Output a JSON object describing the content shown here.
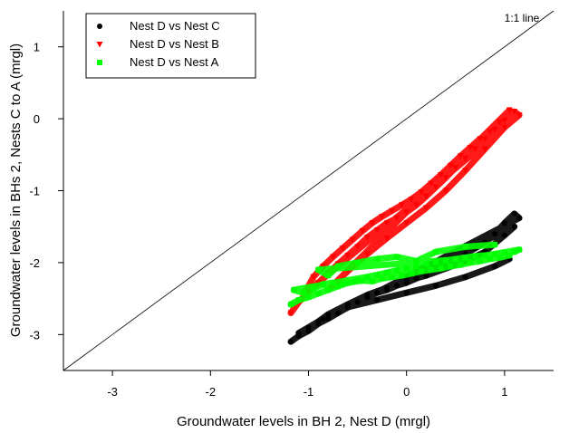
{
  "chart_data": {
    "type": "scatter",
    "xlabel": "Groundwater levels in BH 2, Nest D (mrgl)",
    "ylabel": "Groundwater levels in BHs 2, Nests C to A (mrgl)",
    "xlim": [
      -3.5,
      1.5
    ],
    "ylim": [
      -3.5,
      1.5
    ],
    "xticks": [
      -3,
      -2,
      -1,
      0,
      1
    ],
    "yticks": [
      -3,
      -2,
      -1,
      0,
      1
    ],
    "grid": false,
    "legend_position": "top-left",
    "reference_line": {
      "label": "1:1 line",
      "from": [
        -3.5,
        -3.5
      ],
      "to": [
        1.5,
        1.5
      ]
    },
    "series": [
      {
        "name": "Nest D vs Nest C",
        "marker": "circle",
        "color": "#000000",
        "x": [
          -1.18,
          -1.1,
          -1.0,
          -0.9,
          -0.8,
          -0.7,
          -0.6,
          -0.5,
          -0.4,
          -0.3,
          -0.2,
          -0.1,
          0.0,
          0.1,
          0.2,
          0.3,
          0.4,
          0.5,
          0.6,
          0.7,
          0.8,
          0.9,
          1.0,
          1.1,
          1.15,
          -1.1,
          -1.0,
          -0.9,
          -0.8,
          -0.6,
          -0.4,
          -0.2,
          0.0,
          0.2,
          0.4,
          0.6,
          0.8,
          1.0,
          1.1,
          -0.85,
          -0.6,
          -0.3,
          0.0,
          0.3,
          0.6,
          0.9,
          1.05
        ],
        "y": [
          -3.1,
          -3.02,
          -2.95,
          -2.85,
          -2.78,
          -2.7,
          -2.62,
          -2.55,
          -2.48,
          -2.42,
          -2.38,
          -2.32,
          -2.28,
          -2.22,
          -2.15,
          -2.08,
          -2.02,
          -1.95,
          -1.88,
          -1.8,
          -1.72,
          -1.6,
          -1.45,
          -1.32,
          -1.38,
          -2.98,
          -2.9,
          -2.82,
          -2.72,
          -2.58,
          -2.45,
          -2.35,
          -2.25,
          -2.18,
          -2.08,
          -1.98,
          -1.85,
          -1.62,
          -1.5,
          -2.78,
          -2.62,
          -2.52,
          -2.42,
          -2.32,
          -2.2,
          -2.05,
          -1.95
        ]
      },
      {
        "name": "Nest D vs Nest B",
        "marker": "triangle-down",
        "color": "#ff0000",
        "x": [
          -1.18,
          -1.1,
          -1.0,
          -0.9,
          -0.8,
          -0.7,
          -0.6,
          -0.5,
          -0.4,
          -0.3,
          -0.2,
          -0.1,
          0.0,
          0.1,
          0.2,
          0.3,
          0.4,
          0.5,
          0.6,
          0.7,
          0.8,
          0.9,
          1.0,
          1.1,
          1.15,
          -1.05,
          -0.95,
          -0.85,
          -0.75,
          -0.65,
          -0.55,
          -0.45,
          -0.35,
          -0.25,
          -0.15,
          -0.05,
          0.05,
          0.15,
          0.25,
          0.35,
          0.45,
          0.55,
          0.65,
          0.75,
          0.85,
          0.95,
          1.05,
          -0.8,
          -0.6,
          -0.4,
          -0.2,
          0.0,
          0.2,
          0.4,
          0.6,
          0.8,
          1.0
        ],
        "y": [
          -2.7,
          -2.55,
          -2.4,
          -2.28,
          -2.15,
          -2.02,
          -1.9,
          -1.78,
          -1.65,
          -1.55,
          -1.45,
          -1.38,
          -1.3,
          -1.2,
          -1.08,
          -0.95,
          -0.82,
          -0.68,
          -0.55,
          -0.42,
          -0.28,
          -0.15,
          -0.02,
          0.1,
          0.05,
          -2.45,
          -2.2,
          -2.05,
          -1.92,
          -1.8,
          -1.68,
          -1.56,
          -1.45,
          -1.36,
          -1.28,
          -1.2,
          -1.12,
          -1.02,
          -0.9,
          -0.78,
          -0.65,
          -0.52,
          -0.4,
          -0.28,
          -0.18,
          -0.05,
          0.12,
          -2.38,
          -2.12,
          -1.88,
          -1.66,
          -1.45,
          -1.24,
          -1.0,
          -0.72,
          -0.42,
          -0.12
        ]
      },
      {
        "name": "Nest D vs Nest A",
        "marker": "square",
        "color": "#00ff00",
        "x": [
          -1.18,
          -1.1,
          -1.0,
          -0.9,
          -0.8,
          -0.7,
          -0.6,
          -0.5,
          -0.4,
          -0.3,
          -0.2,
          -0.1,
          0.0,
          0.1,
          0.2,
          0.3,
          0.4,
          0.5,
          0.6,
          0.7,
          0.8,
          0.9,
          1.0,
          1.1,
          1.15,
          -1.15,
          -1.05,
          -0.95,
          -0.85,
          -0.75,
          -0.65,
          -0.55,
          -0.45,
          -0.35,
          -0.25,
          -0.15,
          -0.05,
          0.05,
          0.15,
          0.25,
          0.35,
          0.45,
          0.55,
          0.65,
          0.75,
          0.85,
          0.95,
          1.05,
          -0.9,
          -0.8,
          -0.7,
          -0.5,
          -0.3,
          -0.1,
          0.1,
          0.3,
          0.6,
          0.9
        ],
        "y": [
          -2.58,
          -2.52,
          -2.48,
          -2.43,
          -2.38,
          -2.33,
          -2.28,
          -2.24,
          -2.2,
          -2.17,
          -2.14,
          -2.11,
          -2.08,
          -2.05,
          -2.02,
          -1.99,
          -1.97,
          -1.95,
          -1.93,
          -1.91,
          -1.9,
          -1.88,
          -1.86,
          -1.85,
          -1.82,
          -2.38,
          -2.42,
          -2.36,
          -2.3,
          -2.28,
          -2.3,
          -2.27,
          -2.25,
          -2.26,
          -2.22,
          -2.2,
          -2.18,
          -2.15,
          -2.12,
          -2.1,
          -2.08,
          -2.05,
          -2.03,
          -2.0,
          -1.98,
          -1.95,
          -1.93,
          -1.9,
          -2.1,
          -2.18,
          -2.05,
          -2.0,
          -1.95,
          -1.92,
          -1.98,
          -1.85,
          -1.78,
          -1.75
        ]
      }
    ]
  }
}
